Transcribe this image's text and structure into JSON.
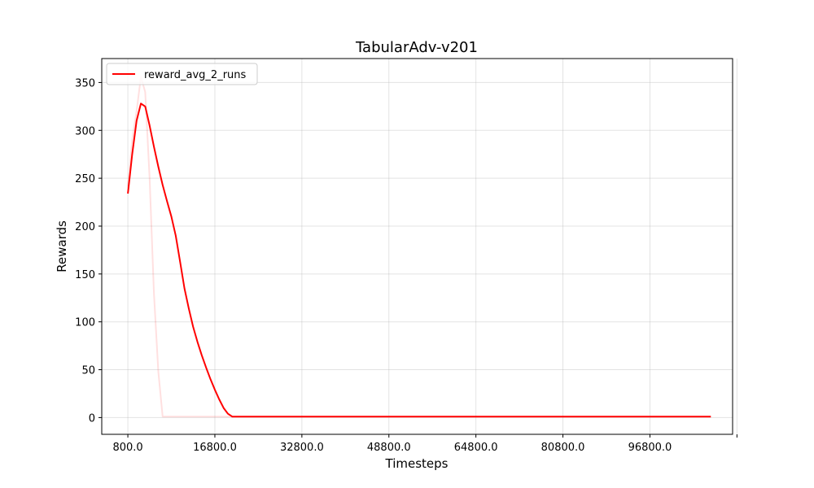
{
  "chart_data": {
    "type": "line",
    "title": "TabularAdv-v201",
    "xlabel": "Timesteps",
    "ylabel": "Rewards",
    "xlim": [
      -4000,
      112000
    ],
    "ylim": [
      -17.5,
      375
    ],
    "xticks": [
      800,
      16800,
      32800,
      48800,
      64800,
      80800,
      96800,
      112800
    ],
    "xtick_labels": [
      "800.0",
      "16800.0",
      "32800.0",
      "48800.0",
      "64800.0",
      "80800.0",
      "96800.0",
      ""
    ],
    "yticks": [
      0,
      50,
      100,
      150,
      200,
      250,
      300,
      350
    ],
    "ytick_labels": [
      "0",
      "50",
      "100",
      "150",
      "200",
      "250",
      "300",
      "350"
    ],
    "grid": true,
    "legend_position": "top-left",
    "series": [
      {
        "name": "reward_avg_2_runs",
        "color": "#ff0000",
        "opacity": 1,
        "in_legend": true,
        "x": [
          800,
          1600,
          2400,
          3200,
          4000,
          4800,
          5600,
          6400,
          7200,
          8000,
          8800,
          9600,
          10400,
          11200,
          12000,
          12800,
          13600,
          14400,
          15200,
          16000,
          16800,
          17600,
          18400,
          19200,
          20000,
          24000,
          32000,
          48000,
          64000,
          80000,
          96000,
          108000
        ],
        "y": [
          234,
          275,
          310,
          328,
          325,
          305,
          283,
          262,
          243,
          226,
          210,
          190,
          163,
          135,
          114,
          95,
          79,
          65,
          52,
          40,
          29,
          19,
          10,
          4,
          1,
          1,
          1,
          1,
          1,
          1,
          1,
          1
        ]
      },
      {
        "name": "",
        "color": "#ff0000",
        "opacity": 0.12,
        "in_legend": false,
        "x": [
          800,
          1600,
          2400,
          3200,
          4000,
          4800,
          5600,
          6400,
          7200,
          8000,
          12000,
          16000,
          20000
        ],
        "y": [
          240,
          290,
          320,
          356,
          340,
          250,
          130,
          48,
          1,
          1,
          1,
          1,
          1
        ]
      }
    ]
  }
}
